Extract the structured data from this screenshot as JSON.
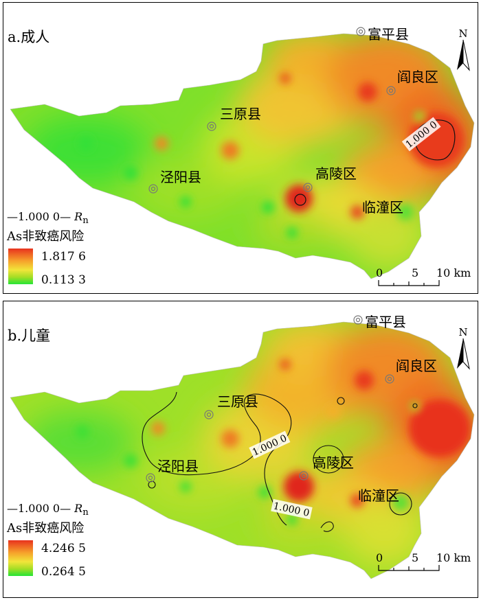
{
  "panels": [
    {
      "title": "a.成人",
      "places": {
        "fuping": "富平县",
        "yanliang": "阎良区",
        "sanyuan": "三原县",
        "jingyang": "泾阳县",
        "gaoling": "高陵区",
        "lintong": "临潼区"
      },
      "north_label": "N",
      "legend": {
        "contour_value": "1.000 0",
        "contour_symbol": "R",
        "contour_subscript": "n",
        "title": "As非致癌风险",
        "max": "1.817 6",
        "min": "0.113 3"
      },
      "contour_labels": [
        "1.000 0"
      ],
      "scale": {
        "labels": [
          "0",
          "5",
          "10 km"
        ]
      }
    },
    {
      "title": "b.儿童",
      "places": {
        "fuping": "富平县",
        "yanliang": "阎良区",
        "sanyuan": "三原县",
        "jingyang": "泾阳县",
        "gaoling": "高陵区",
        "lintong": "临潼区"
      },
      "north_label": "N",
      "legend": {
        "contour_value": "1.000 0",
        "contour_symbol": "R",
        "contour_subscript": "n",
        "title": "As非致癌风险",
        "max": "4.246 5",
        "min": "0.264 5"
      },
      "contour_labels": [
        "1.000 0",
        "1.000 0"
      ],
      "scale": {
        "labels": [
          "0",
          "5",
          "10 km"
        ]
      }
    }
  ],
  "colors": {
    "high": "#e8331e",
    "mid_high": "#f6a22b",
    "mid": "#f1e53a",
    "mid_low": "#a5dd25",
    "low": "#25e436"
  }
}
